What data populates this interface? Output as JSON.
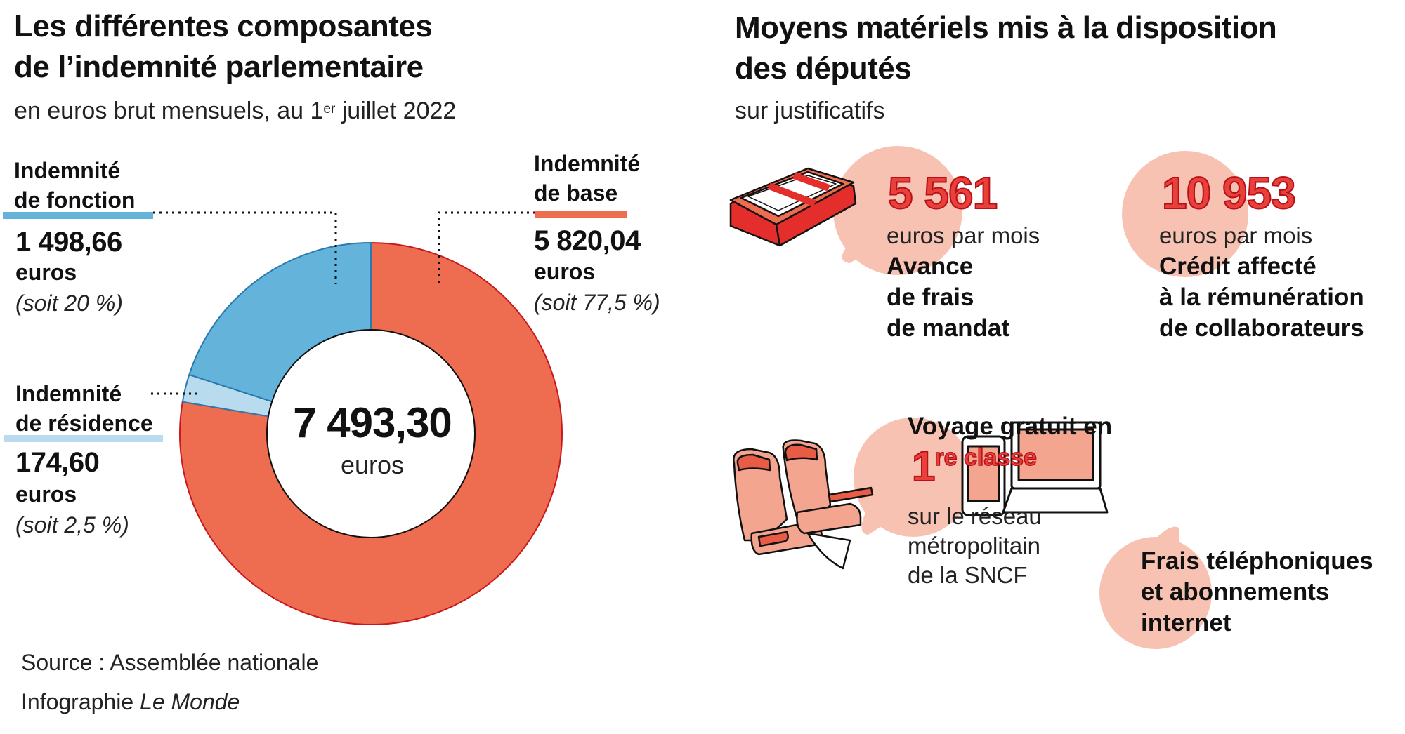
{
  "left": {
    "title_line1": "Les différentes composantes",
    "title_line2": "de l’indemnité parlementaire",
    "subtitle_pre": "en euros brut mensuels, au 1",
    "subtitle_sup": "er",
    "subtitle_post": " juillet 2022",
    "source": "Source : Assemblée nationale",
    "credit_pre": "Infographie ",
    "credit_italic": "Le Monde"
  },
  "chart_data": {
    "type": "pie",
    "donut": true,
    "total_label": "7 493,30",
    "total_unit": "euros",
    "slices": [
      {
        "label_line1": "Indemnité",
        "label_line2": "de base",
        "value": 5820.04,
        "value_label": "5 820,04",
        "unit": "euros",
        "share_label": "(soit 77,5 %)",
        "color": "#ee6c4f"
      },
      {
        "label_line1": "Indemnité",
        "label_line2": "de résidence",
        "value": 174.6,
        "value_label": "174,60",
        "unit": "euros",
        "share_label": "(soit 2,5 %)",
        "color": "#b9dbee"
      },
      {
        "label_line1": "Indemnité",
        "label_line2": "de fonction",
        "value": 1498.66,
        "value_label": "1 498,66",
        "unit": "euros",
        "share_label": "(soit 20 %)",
        "color": "#63b3da"
      }
    ]
  },
  "right": {
    "title_line1": "Moyens matériels mis à la disposition",
    "title_line2": "des députés",
    "subtitle": "sur justificatifs",
    "card_mandat": {
      "amount": "5 561",
      "unit": "euros par mois",
      "line1": "Avance",
      "line2": "de frais",
      "line3": "de mandat",
      "icon": "banknotes-icon"
    },
    "card_collab": {
      "amount": "10 953",
      "unit": "euros par mois",
      "line1": "Crédit affecté",
      "line2": "à la rémunération",
      "line3": "de collaborateurs"
    },
    "card_train": {
      "head": "Voyage gratuit en",
      "big": "1",
      "sup": "re classe",
      "line1": "sur le réseau",
      "line2": "métropolitain",
      "line3": "de la SNCF",
      "icon": "train-seats-icon"
    },
    "card_phone": {
      "line1": "Frais téléphoniques",
      "line2": "et abonnements",
      "line3": "internet",
      "icon": "phone-laptop-icon"
    }
  },
  "colors": {
    "red": "#e8403a",
    "salmon": "#ee6c4f",
    "blue": "#63b3da",
    "light_blue": "#b9dbee",
    "bubble": "#f8c2b3"
  }
}
